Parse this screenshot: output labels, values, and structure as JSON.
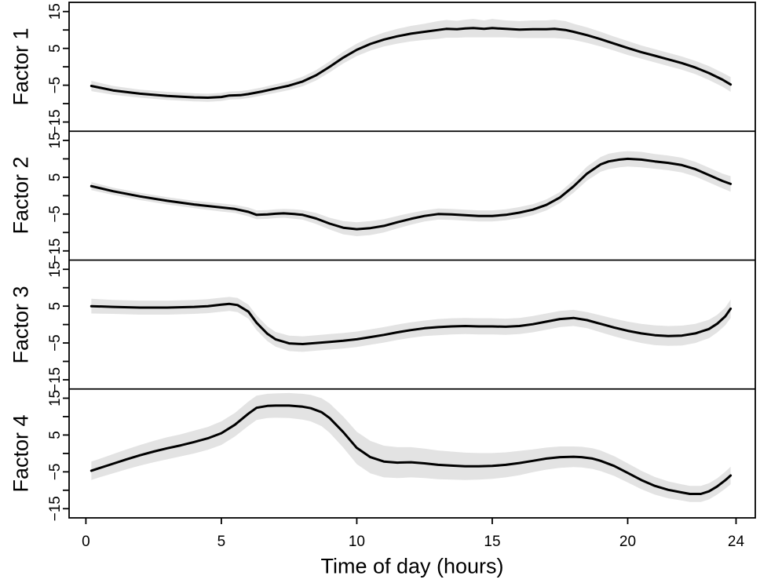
{
  "figure": {
    "x_axis_title": "Time of day (hours)"
  },
  "chart_data": {
    "type": "line",
    "title": "",
    "xlabel": "Time of day (hours)",
    "ylabel_panels": [
      "Factor 1",
      "Factor 2",
      "Factor 3",
      "Factor 4"
    ],
    "xlim": [
      -0.62,
      24.71
    ],
    "y_half_range": 17.5,
    "grid": false,
    "legend": "none",
    "line_color": "#000000",
    "band_color": "#e3e3e3",
    "x_ticks": {
      "values": [
        0,
        5,
        10,
        15,
        20,
        24
      ],
      "labels": [
        "0",
        "5",
        "10",
        "15",
        "20",
        "24"
      ]
    },
    "y_ticks": {
      "all_values": [
        -15,
        -10,
        -5,
        0,
        5,
        10,
        15
      ],
      "major_values": [
        15,
        5,
        -5,
        -15
      ],
      "major_labels": [
        "15",
        "5",
        "−5",
        "−15"
      ]
    },
    "panels": [
      {
        "label": "Factor 1",
        "x": [
          0.2,
          1,
          2,
          3,
          4,
          4.5,
          5,
          5.3,
          5.7,
          6,
          6.5,
          7,
          7.5,
          8,
          8.5,
          9,
          9.5,
          10,
          10.5,
          11,
          11.5,
          12,
          12.5,
          13,
          13.3,
          13.7,
          14,
          14.3,
          14.7,
          15,
          15.5,
          16,
          16.5,
          17,
          17.3,
          17.7,
          18,
          18.5,
          19,
          19.5,
          20,
          20.5,
          21,
          21.5,
          22,
          22.5,
          23,
          23.5,
          23.8
        ],
        "y": [
          -5.2,
          -6.4,
          -7.3,
          -7.9,
          -8.3,
          -8.4,
          -8.2,
          -7.8,
          -7.7,
          -7.4,
          -6.7,
          -5.9,
          -5.1,
          -4.0,
          -2.3,
          0.0,
          2.5,
          4.6,
          6.2,
          7.4,
          8.3,
          9.0,
          9.5,
          10.0,
          10.3,
          10.2,
          10.4,
          10.5,
          10.3,
          10.5,
          10.3,
          10.1,
          10.2,
          10.2,
          10.3,
          10.0,
          9.5,
          8.6,
          7.5,
          6.3,
          5.1,
          4.0,
          3.0,
          2.0,
          1.0,
          -0.2,
          -1.7,
          -3.5,
          -4.8
        ],
        "band": [
          1.4,
          1.2,
          1.1,
          1.1,
          1.1,
          1.1,
          1.1,
          1.1,
          1.1,
          1.1,
          1.1,
          1.2,
          1.2,
          1.3,
          1.4,
          1.5,
          1.6,
          1.7,
          1.8,
          1.9,
          2.0,
          2.1,
          2.2,
          2.4,
          2.4,
          2.3,
          2.4,
          2.5,
          2.3,
          2.5,
          2.3,
          2.3,
          2.4,
          2.4,
          2.5,
          2.4,
          2.2,
          2.1,
          2.0,
          1.9,
          1.9,
          1.8,
          1.8,
          1.8,
          1.8,
          1.8,
          1.9,
          1.9,
          2.0
        ]
      },
      {
        "label": "Factor 2",
        "x": [
          0.2,
          1,
          2,
          3,
          4,
          5,
          5.5,
          6,
          6.3,
          6.7,
          7,
          7.3,
          7.7,
          8,
          8.5,
          9,
          9.5,
          10,
          10.5,
          11,
          11.5,
          12,
          12.5,
          13,
          13.5,
          14,
          14.5,
          15,
          15.5,
          16,
          16.5,
          17,
          17.5,
          18,
          18.5,
          19,
          19.3,
          19.7,
          20,
          20.5,
          21,
          21.5,
          22,
          22.5,
          23,
          23.5,
          23.8
        ],
        "y": [
          2.6,
          1.2,
          -0.2,
          -1.4,
          -2.4,
          -3.2,
          -3.6,
          -4.4,
          -5.2,
          -5.1,
          -4.9,
          -4.8,
          -5.0,
          -5.2,
          -6.2,
          -7.6,
          -8.7,
          -9.1,
          -8.8,
          -8.2,
          -7.2,
          -6.3,
          -5.5,
          -5.0,
          -5.1,
          -5.3,
          -5.5,
          -5.5,
          -5.2,
          -4.6,
          -3.8,
          -2.5,
          -0.5,
          2.5,
          6.0,
          8.5,
          9.3,
          9.8,
          10.0,
          9.8,
          9.3,
          8.9,
          8.3,
          7.2,
          5.6,
          4.0,
          3.2
        ],
        "band": [
          1.1,
          1.0,
          1.0,
          1.0,
          1.0,
          1.1,
          1.1,
          1.2,
          1.2,
          1.2,
          1.2,
          1.2,
          1.3,
          1.3,
          1.5,
          1.6,
          1.8,
          1.9,
          1.9,
          1.8,
          1.7,
          1.6,
          1.5,
          1.5,
          1.5,
          1.5,
          1.5,
          1.5,
          1.5,
          1.5,
          1.5,
          1.5,
          1.5,
          1.7,
          1.9,
          2.0,
          2.1,
          2.1,
          2.1,
          2.1,
          2.0,
          2.0,
          2.0,
          2.0,
          2.0,
          2.0,
          2.1
        ]
      },
      {
        "label": "Factor 3",
        "x": [
          0.2,
          1,
          2,
          3,
          4,
          4.5,
          5,
          5.3,
          5.6,
          6,
          6.3,
          6.7,
          7,
          7.5,
          8,
          8.5,
          9,
          9.5,
          10,
          10.5,
          11,
          11.5,
          12,
          12.5,
          13,
          13.5,
          14,
          14.5,
          15,
          15.5,
          16,
          16.5,
          17,
          17.5,
          18,
          18.5,
          19,
          19.5,
          20,
          20.5,
          21,
          21.5,
          22,
          22.5,
          23,
          23.3,
          23.6,
          23.8
        ],
        "y": [
          5.0,
          4.8,
          4.6,
          4.6,
          4.8,
          5.0,
          5.4,
          5.6,
          5.3,
          3.5,
          0.5,
          -2.5,
          -4.0,
          -5.1,
          -5.3,
          -5.0,
          -4.7,
          -4.4,
          -4.0,
          -3.4,
          -2.8,
          -2.1,
          -1.5,
          -1.0,
          -0.7,
          -0.5,
          -0.4,
          -0.5,
          -0.5,
          -0.6,
          -0.4,
          0.1,
          0.8,
          1.5,
          1.8,
          1.2,
          0.2,
          -0.8,
          -1.7,
          -2.4,
          -2.9,
          -3.1,
          -3.0,
          -2.4,
          -1.2,
          0.2,
          2.2,
          4.3
        ],
        "band": [
          2.0,
          1.9,
          1.9,
          1.9,
          1.9,
          1.9,
          1.9,
          1.9,
          1.9,
          1.9,
          2.0,
          2.0,
          2.0,
          2.1,
          2.1,
          2.1,
          2.1,
          2.1,
          2.1,
          2.1,
          2.1,
          2.1,
          2.1,
          2.1,
          2.2,
          2.2,
          2.2,
          2.2,
          2.2,
          2.2,
          2.2,
          2.2,
          2.2,
          2.2,
          2.2,
          2.2,
          2.3,
          2.4,
          2.5,
          2.6,
          2.7,
          2.7,
          2.7,
          2.6,
          2.5,
          2.4,
          2.4,
          2.5
        ]
      },
      {
        "label": "Factor 4",
        "x": [
          0.2,
          0.5,
          1,
          1.5,
          2,
          2.5,
          3,
          3.5,
          4,
          4.5,
          5,
          5.5,
          6,
          6.3,
          6.7,
          7,
          7.5,
          8,
          8.3,
          8.7,
          9,
          9.5,
          10,
          10.5,
          11,
          11.5,
          12,
          12.5,
          13,
          13.5,
          14,
          14.5,
          15,
          15.5,
          16,
          16.5,
          17,
          17.5,
          18,
          18.3,
          18.7,
          19,
          19.5,
          20,
          20.5,
          21,
          21.5,
          22,
          22.3,
          22.7,
          23,
          23.3,
          23.6,
          23.8
        ],
        "y": [
          -4.7,
          -4.0,
          -2.8,
          -1.6,
          -0.5,
          0.5,
          1.4,
          2.2,
          3.1,
          4.1,
          5.5,
          7.8,
          10.8,
          12.4,
          12.9,
          13.0,
          13.0,
          12.7,
          12.3,
          11.2,
          9.6,
          5.8,
          1.5,
          -1.0,
          -2.2,
          -2.5,
          -2.4,
          -2.7,
          -3.1,
          -3.3,
          -3.5,
          -3.5,
          -3.4,
          -3.1,
          -2.6,
          -2.0,
          -1.4,
          -1.0,
          -0.9,
          -1.0,
          -1.4,
          -2.0,
          -3.4,
          -5.3,
          -7.2,
          -8.8,
          -9.9,
          -10.6,
          -11.0,
          -11.0,
          -10.3,
          -9.0,
          -7.3,
          -6.0
        ],
        "band": [
          2.5,
          2.5,
          2.6,
          2.7,
          2.8,
          2.9,
          3.0,
          3.0,
          3.1,
          3.1,
          3.2,
          3.2,
          3.3,
          3.3,
          3.3,
          3.3,
          3.4,
          3.5,
          3.6,
          3.8,
          4.0,
          4.2,
          4.4,
          4.4,
          4.3,
          4.2,
          4.1,
          4.0,
          3.9,
          3.8,
          3.7,
          3.6,
          3.5,
          3.4,
          3.3,
          3.1,
          3.0,
          2.9,
          2.8,
          2.8,
          2.8,
          2.8,
          2.7,
          2.6,
          2.5,
          2.4,
          2.3,
          2.2,
          2.2,
          2.2,
          2.2,
          2.2,
          2.3,
          2.4
        ]
      }
    ]
  }
}
